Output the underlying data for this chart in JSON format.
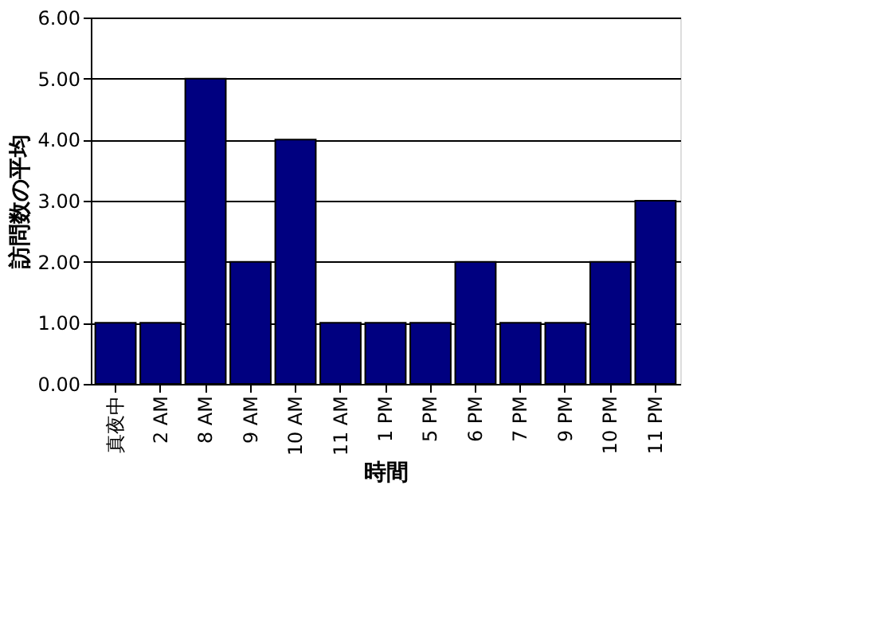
{
  "chart_data": {
    "type": "bar",
    "xlabel": "時間",
    "ylabel": "訪問数の平均",
    "categories": [
      "真夜中",
      "2 AM",
      "8 AM",
      "9 AM",
      "10 AM",
      "11 AM",
      "1 PM",
      "5 PM",
      "6 PM",
      "7 PM",
      "9 PM",
      "10 PM",
      "11 PM"
    ],
    "values": [
      1,
      1,
      5,
      2,
      4,
      1,
      1,
      1,
      2,
      1,
      1,
      2,
      3
    ],
    "color": "#000080",
    "ylim": [
      0,
      6
    ],
    "yticks": [
      {
        "value": 0,
        "label": "0.00"
      },
      {
        "value": 1,
        "label": "1.00"
      },
      {
        "value": 2,
        "label": "2.00"
      },
      {
        "value": 3,
        "label": "3.00"
      },
      {
        "value": 4,
        "label": "4.00"
      },
      {
        "value": 5,
        "label": "5.00"
      },
      {
        "value": 6,
        "label": "6.00"
      }
    ],
    "grid": "y"
  }
}
